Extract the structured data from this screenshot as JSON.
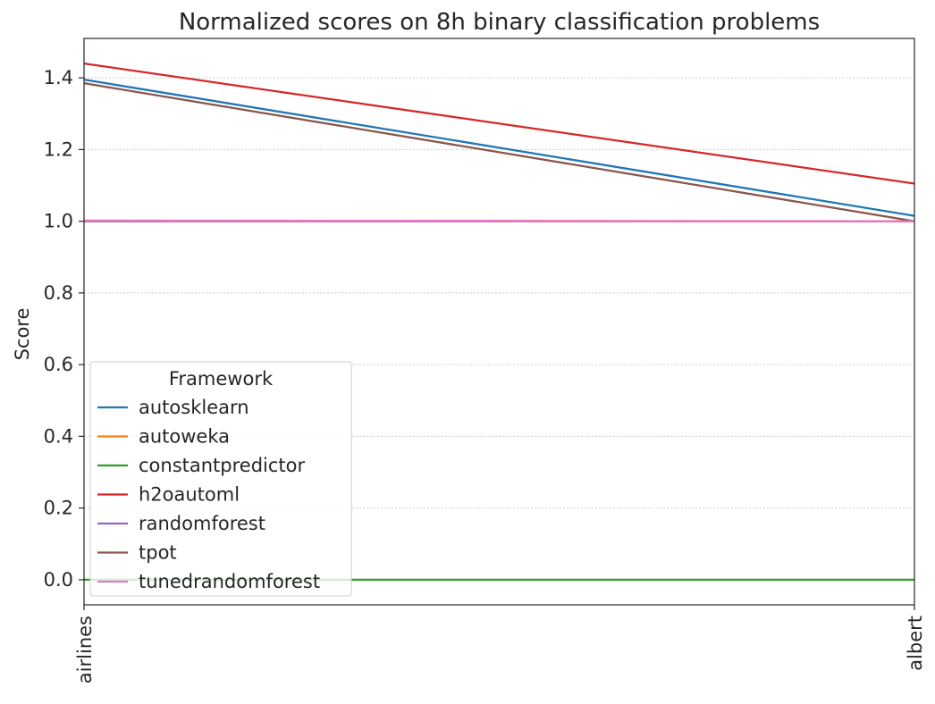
{
  "chart_data": {
    "type": "line",
    "title": "Normalized scores on 8h binary classification problems",
    "xlabel": "",
    "ylabel": "Score",
    "categories": [
      "airlines",
      "albert"
    ],
    "ylim": [
      -0.07,
      1.51
    ],
    "yticks": [
      0.0,
      0.2,
      0.4,
      0.6,
      0.8,
      1.0,
      1.2,
      1.4
    ],
    "ytick_labels": [
      "0.0",
      "0.2",
      "0.4",
      "0.6",
      "0.8",
      "1.0",
      "1.2",
      "1.4"
    ],
    "grid": "horizontal dotted",
    "legend": {
      "title": "Framework",
      "placement": "lower-left"
    },
    "series": [
      {
        "name": "autosklearn",
        "values": [
          1.395,
          1.015
        ],
        "color": "#1f77b4"
      },
      {
        "name": "autoweka",
        "values": [
          1.0,
          1.0
        ],
        "color": "#ff7f0e"
      },
      {
        "name": "constantpredictor",
        "values": [
          0.0,
          0.0
        ],
        "color": "#2ca02c"
      },
      {
        "name": "h2oautoml",
        "values": [
          1.44,
          1.105
        ],
        "color": "#d62728"
      },
      {
        "name": "randomforest",
        "values": [
          1.0,
          1.0
        ],
        "color": "#9467bd"
      },
      {
        "name": "tpot",
        "values": [
          1.385,
          1.0
        ],
        "color": "#8c564b"
      },
      {
        "name": "tunedrandomforest",
        "values": [
          1.002,
          1.0
        ],
        "color": "#e377c2"
      }
    ]
  }
}
